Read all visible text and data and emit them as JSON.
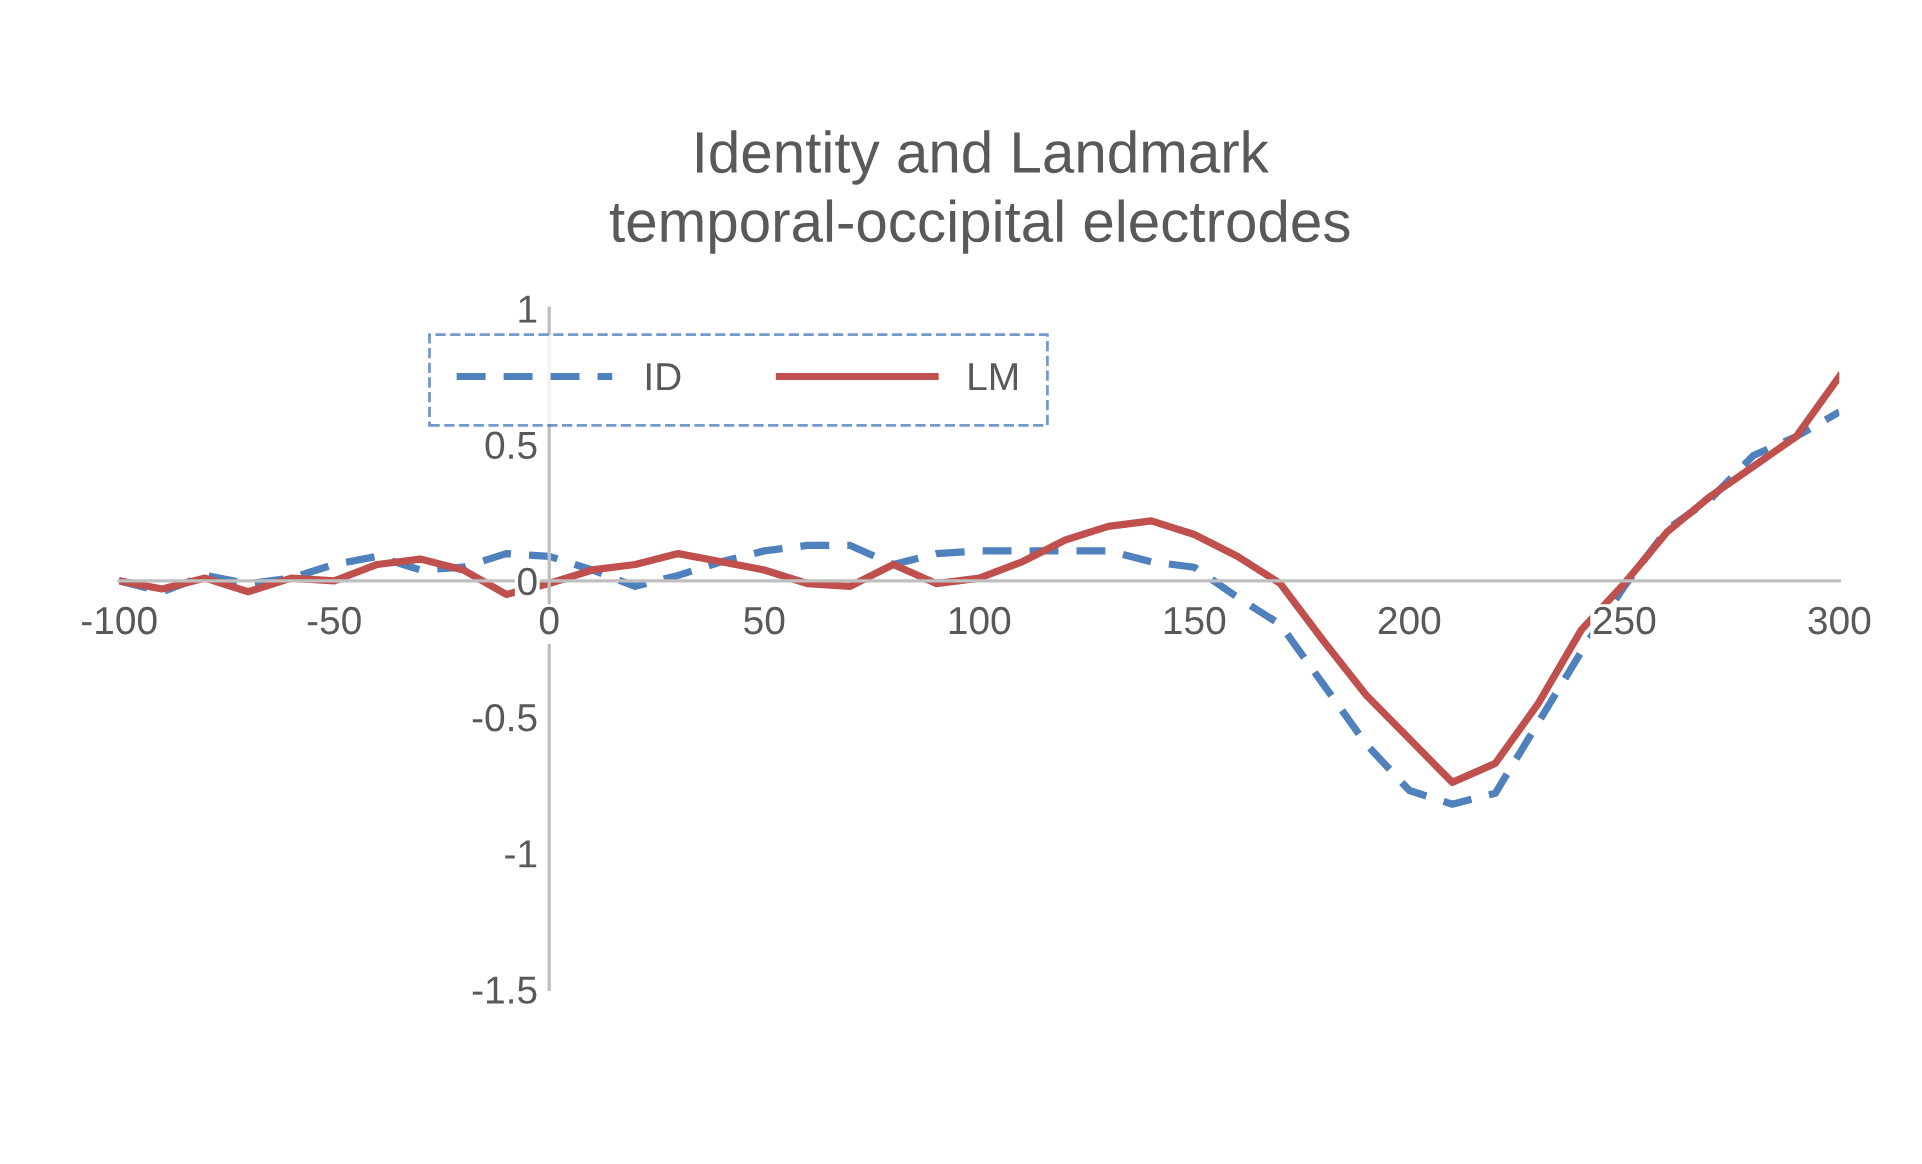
{
  "chart_data": {
    "type": "line",
    "title": "Identity and Landmark\ntemporal-occipital electrodes",
    "x": [
      -100,
      -90,
      -80,
      -70,
      -60,
      -50,
      -40,
      -30,
      -20,
      -10,
      0,
      10,
      20,
      30,
      40,
      50,
      60,
      70,
      80,
      90,
      100,
      110,
      120,
      130,
      140,
      150,
      160,
      170,
      180,
      190,
      200,
      210,
      220,
      230,
      240,
      250,
      260,
      270,
      280,
      290,
      300
    ],
    "series": [
      {
        "name": "ID",
        "color": "#4f81bd",
        "line_style": "dashed",
        "values": [
          0,
          -0.04,
          0.02,
          -0.01,
          0.01,
          0.06,
          0.09,
          0.04,
          0.05,
          0.1,
          0.09,
          0.04,
          -0.02,
          0.02,
          0.07,
          0.11,
          0.13,
          0.13,
          0.06,
          0.1,
          0.11,
          0.11,
          0.11,
          0.11,
          0.07,
          0.05,
          -0.06,
          -0.16,
          -0.38,
          -0.6,
          -0.77,
          -0.82,
          -0.78,
          -0.52,
          -0.26,
          -0.02,
          0.19,
          0.3,
          0.46,
          0.53,
          0.62
        ]
      },
      {
        "name": "LM",
        "color": "#c0504d",
        "line_style": "solid",
        "values": [
          0,
          -0.03,
          0.01,
          -0.04,
          0.01,
          0,
          0.06,
          0.08,
          0.04,
          -0.05,
          -0.01,
          0.04,
          0.06,
          0.1,
          0.07,
          0.04,
          -0.01,
          -0.02,
          0.06,
          -0.01,
          0.01,
          0.07,
          0.15,
          0.2,
          0.22,
          0.17,
          0.09,
          -0.01,
          -0.22,
          -0.42,
          -0.58,
          -0.74,
          -0.67,
          -0.45,
          -0.18,
          -0.01,
          0.18,
          0.31,
          0.42,
          0.53,
          0.75
        ]
      }
    ],
    "xlim": [
      -100,
      300
    ],
    "xticks": [
      -100,
      -50,
      0,
      50,
      100,
      150,
      200,
      250,
      300
    ],
    "ylim": [
      -1.5,
      1
    ],
    "yticks": [
      -1.5,
      -1,
      -0.5,
      0,
      0.5,
      1
    ],
    "grid": false,
    "legend": "top",
    "marker": "none"
  }
}
